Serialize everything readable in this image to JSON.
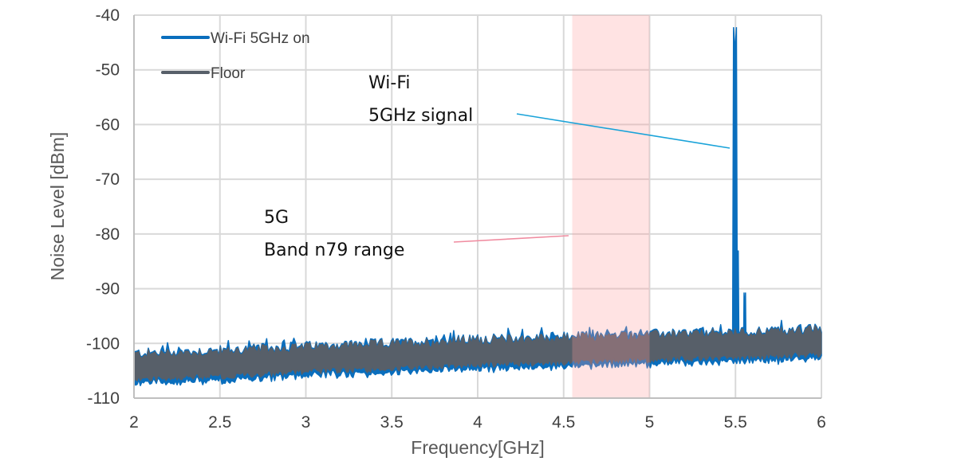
{
  "chart_data": {
    "type": "line",
    "title": "",
    "xlabel": "Frequency[GHz]",
    "ylabel": "Noise Level [dBm]",
    "xlim": [
      2,
      6
    ],
    "ylim": [
      -110,
      -40
    ],
    "x_ticks": [
      2,
      2.5,
      3,
      3.5,
      4,
      4.5,
      5,
      5.5,
      6
    ],
    "x_tick_labels": [
      "2",
      "2.5",
      "3",
      "3.5",
      "4",
      "4.5",
      "5",
      "5.5",
      "6"
    ],
    "y_ticks": [
      -40,
      -50,
      -60,
      -70,
      -80,
      -90,
      -100,
      -110
    ],
    "y_tick_labels": [
      "-40",
      "-50",
      "-60",
      "-70",
      "-80",
      "-90",
      "-100",
      "-110"
    ],
    "grid": true,
    "legend_position": "upper-left",
    "series": [
      {
        "name": "Wi-Fi 5GHz on",
        "color": "#0a6ebd",
        "description": "Noise spectrum with Wi-Fi 5GHz active; follows floor except strong peak near 5.5 GHz",
        "x": [
          2.0,
          2.5,
          3.0,
          3.5,
          4.0,
          4.5,
          5.0,
          5.45,
          5.49,
          5.5,
          5.51,
          5.53,
          5.55,
          5.6,
          6.0
        ],
        "y": [
          -104.5,
          -104.0,
          -103.0,
          -102.5,
          -101.8,
          -101.5,
          -101.0,
          -100.8,
          -85.0,
          -45.2,
          -48.0,
          -100.5,
          -93.7,
          -100.5,
          -99.8
        ],
        "noise_band_db": [
          -106,
          -98
        ]
      },
      {
        "name": "Floor",
        "color": "#575f69",
        "description": "Measured noise floor, rising slowly from about -104.5 dBm to about -100 dBm",
        "x": [
          2.0,
          2.5,
          3.0,
          3.5,
          4.0,
          4.5,
          5.0,
          5.5,
          6.0
        ],
        "y": [
          -104.5,
          -104.0,
          -103.2,
          -102.6,
          -101.9,
          -101.5,
          -101.0,
          -100.6,
          -100.0
        ]
      }
    ],
    "shaded_regions": [
      {
        "name": "5G Band n79 range",
        "x_start": 4.55,
        "x_end": 5.0,
        "color": "#ffd6d6"
      }
    ],
    "annotations": [
      {
        "text_lines": [
          "Wi-Fi",
          "5GHz signal"
        ],
        "points_to": {
          "x": 5.49,
          "y": -64.5
        },
        "color": "#1aa3d9"
      },
      {
        "text_lines": [
          "5G",
          "Band n79 range"
        ],
        "points_to": {
          "x": 4.55,
          "y": -80.3
        },
        "color": "#f08ca0"
      }
    ]
  },
  "legend": {
    "items": [
      {
        "label": "Wi-Fi 5GHz on",
        "color": "#0a6ebd"
      },
      {
        "label": "Floor",
        "color": "#575f69"
      }
    ]
  },
  "annotations": {
    "wifi": {
      "line1": "Wi-Fi",
      "line2": "5GHz signal"
    },
    "n79": {
      "line1": "5G",
      "line2": "Band n79 range"
    }
  },
  "axes": {
    "x_title": "Frequency[GHz]",
    "y_title": "Noise Level [dBm]"
  }
}
